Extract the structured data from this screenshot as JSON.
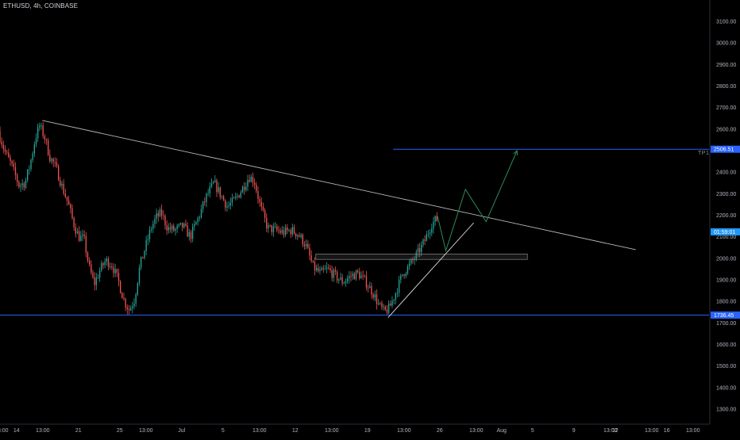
{
  "header": {
    "symbol_title": "ETHUSD, 4h, COINBASE"
  },
  "colors": {
    "background": "#000000",
    "up_candle": "#26a69a",
    "down_candle": "#ef5350",
    "level_line": "#2962ff",
    "trend_line": "#b8b8b8",
    "projection_line": "#2e8b57",
    "zone_border": "#8a8a8a",
    "current_price_tag": "#2196f3",
    "axis_text": "#b2b5be"
  },
  "chart_data": {
    "type": "candlestick",
    "symbol": "ETHUSD",
    "interval": "4h",
    "exchange": "COINBASE",
    "y_axis": {
      "range": [
        1200,
        3200
      ],
      "ticks": [
        3100,
        3000,
        2900,
        2800,
        2700,
        2600,
        2500,
        2400,
        2300,
        2200,
        2100,
        2000,
        1900,
        1800,
        1700,
        1600,
        1500,
        1400,
        1300
      ],
      "tick_labels": [
        "3100.00",
        "3000.00",
        "2900.00",
        "2800.00",
        "2700.00",
        "2600.00",
        "2500.00",
        "2400.00",
        "2300.00",
        "2200.00",
        "2100.00",
        "2000.00",
        "1900.00",
        "1800.00",
        "1700.00",
        "1600.00",
        "1500.00",
        "1400.00",
        "1300.00"
      ]
    },
    "x_axis": {
      "range_days": [
        -17.6,
        51.1
      ],
      "ticks": [
        {
          "t": -17.46,
          "label": "13:00"
        },
        {
          "t": -16,
          "label": "14"
        },
        {
          "t": -13.46,
          "label": "13:00"
        },
        {
          "t": -10,
          "label": "21"
        },
        {
          "t": -6,
          "label": "25"
        },
        {
          "t": -3.46,
          "label": "13:00"
        },
        {
          "t": 0,
          "label": "Jul"
        },
        {
          "t": 4,
          "label": "5"
        },
        {
          "t": 7.54,
          "label": "13:00"
        },
        {
          "t": 11,
          "label": "12"
        },
        {
          "t": 14.54,
          "label": "13:00"
        },
        {
          "t": 18,
          "label": "19"
        },
        {
          "t": 21.54,
          "label": "13:00"
        },
        {
          "t": 25,
          "label": "26"
        },
        {
          "t": 28.54,
          "label": "13:00"
        },
        {
          "t": 31,
          "label": "Aug"
        },
        {
          "t": 34,
          "label": "5"
        },
        {
          "t": 38,
          "label": "9"
        },
        {
          "t": 41.54,
          "label": "13:00"
        },
        {
          "t": 42,
          "label": "12"
        },
        {
          "t": 45.54,
          "label": "13:00"
        },
        {
          "t": 47,
          "label": "16"
        },
        {
          "t": 49.54,
          "label": "13:00"
        }
      ]
    },
    "support_level": {
      "price": 1736.45,
      "label": "1736.45"
    },
    "target_level": {
      "price": 2506.51,
      "label": "2506.51",
      "tag": "TP1",
      "start_t": 20.5
    },
    "current_price": {
      "price": 2099.0,
      "countdown": "01:59:01"
    },
    "descending_trendline": {
      "start": {
        "t": -13.5,
        "price": 2640
      },
      "end": {
        "t": 44.0,
        "price": 2040
      }
    },
    "ascending_trendline": {
      "start": {
        "t": 20.0,
        "price": 1725
      },
      "end": {
        "t": 28.3,
        "price": 2165
      }
    },
    "zone": {
      "start_t": 13.0,
      "end_t": 33.5,
      "top": 2020,
      "bottom": 1995
    },
    "projection_path": [
      {
        "t": 24.8,
        "price": 2195
      },
      {
        "t": 25.6,
        "price": 2035
      },
      {
        "t": 27.5,
        "price": 2320
      },
      {
        "t": 29.5,
        "price": 2170
      },
      {
        "t": 32.5,
        "price": 2500
      }
    ],
    "price_waypoints": [
      {
        "t": -17.6,
        "price": 2590
      },
      {
        "t": -17.0,
        "price": 2500
      },
      {
        "t": -16.3,
        "price": 2430
      },
      {
        "t": -15.6,
        "price": 2340
      },
      {
        "t": -15.0,
        "price": 2350
      },
      {
        "t": -14.5,
        "price": 2440
      },
      {
        "t": -14.0,
        "price": 2560
      },
      {
        "t": -13.6,
        "price": 2615
      },
      {
        "t": -13.1,
        "price": 2560
      },
      {
        "t": -12.6,
        "price": 2470
      },
      {
        "t": -12.0,
        "price": 2420
      },
      {
        "t": -11.4,
        "price": 2330
      },
      {
        "t": -10.8,
        "price": 2250
      },
      {
        "t": -10.3,
        "price": 2160
      },
      {
        "t": -9.8,
        "price": 2100
      },
      {
        "t": -9.3,
        "price": 2090
      },
      {
        "t": -8.8,
        "price": 1960
      },
      {
        "t": -8.3,
        "price": 1880
      },
      {
        "t": -7.8,
        "price": 1940
      },
      {
        "t": -7.2,
        "price": 1990
      },
      {
        "t": -6.6,
        "price": 1970
      },
      {
        "t": -6.0,
        "price": 1900
      },
      {
        "t": -5.4,
        "price": 1800
      },
      {
        "t": -4.9,
        "price": 1760
      },
      {
        "t": -4.4,
        "price": 1810
      },
      {
        "t": -3.9,
        "price": 1960
      },
      {
        "t": -3.3,
        "price": 2060
      },
      {
        "t": -2.8,
        "price": 2140
      },
      {
        "t": -2.3,
        "price": 2190
      },
      {
        "t": -1.8,
        "price": 2210
      },
      {
        "t": -1.2,
        "price": 2140
      },
      {
        "t": -0.5,
        "price": 2130
      },
      {
        "t": 0.3,
        "price": 2150
      },
      {
        "t": 1.0,
        "price": 2100
      },
      {
        "t": 1.8,
        "price": 2190
      },
      {
        "t": 2.6,
        "price": 2290
      },
      {
        "t": 3.3,
        "price": 2350
      },
      {
        "t": 4.0,
        "price": 2290
      },
      {
        "t": 4.6,
        "price": 2240
      },
      {
        "t": 5.3,
        "price": 2270
      },
      {
        "t": 6.0,
        "price": 2320
      },
      {
        "t": 6.7,
        "price": 2380
      },
      {
        "t": 7.2,
        "price": 2360
      },
      {
        "t": 7.8,
        "price": 2240
      },
      {
        "t": 8.5,
        "price": 2140
      },
      {
        "t": 9.3,
        "price": 2130
      },
      {
        "t": 10.0,
        "price": 2120
      },
      {
        "t": 10.8,
        "price": 2130
      },
      {
        "t": 11.5,
        "price": 2110
      },
      {
        "t": 12.2,
        "price": 2060
      },
      {
        "t": 12.9,
        "price": 1960
      },
      {
        "t": 13.6,
        "price": 1930
      },
      {
        "t": 14.3,
        "price": 1950
      },
      {
        "t": 15.0,
        "price": 1920
      },
      {
        "t": 15.8,
        "price": 1890
      },
      {
        "t": 16.6,
        "price": 1920
      },
      {
        "t": 17.3,
        "price": 1930
      },
      {
        "t": 18.0,
        "price": 1890
      },
      {
        "t": 18.7,
        "price": 1840
      },
      {
        "t": 19.3,
        "price": 1780
      },
      {
        "t": 19.8,
        "price": 1750
      },
      {
        "t": 20.3,
        "price": 1770
      },
      {
        "t": 20.9,
        "price": 1840
      },
      {
        "t": 21.6,
        "price": 1930
      },
      {
        "t": 22.3,
        "price": 1970
      },
      {
        "t": 23.0,
        "price": 2020
      },
      {
        "t": 23.7,
        "price": 2080
      },
      {
        "t": 24.4,
        "price": 2160
      },
      {
        "t": 24.8,
        "price": 2180
      }
    ]
  }
}
